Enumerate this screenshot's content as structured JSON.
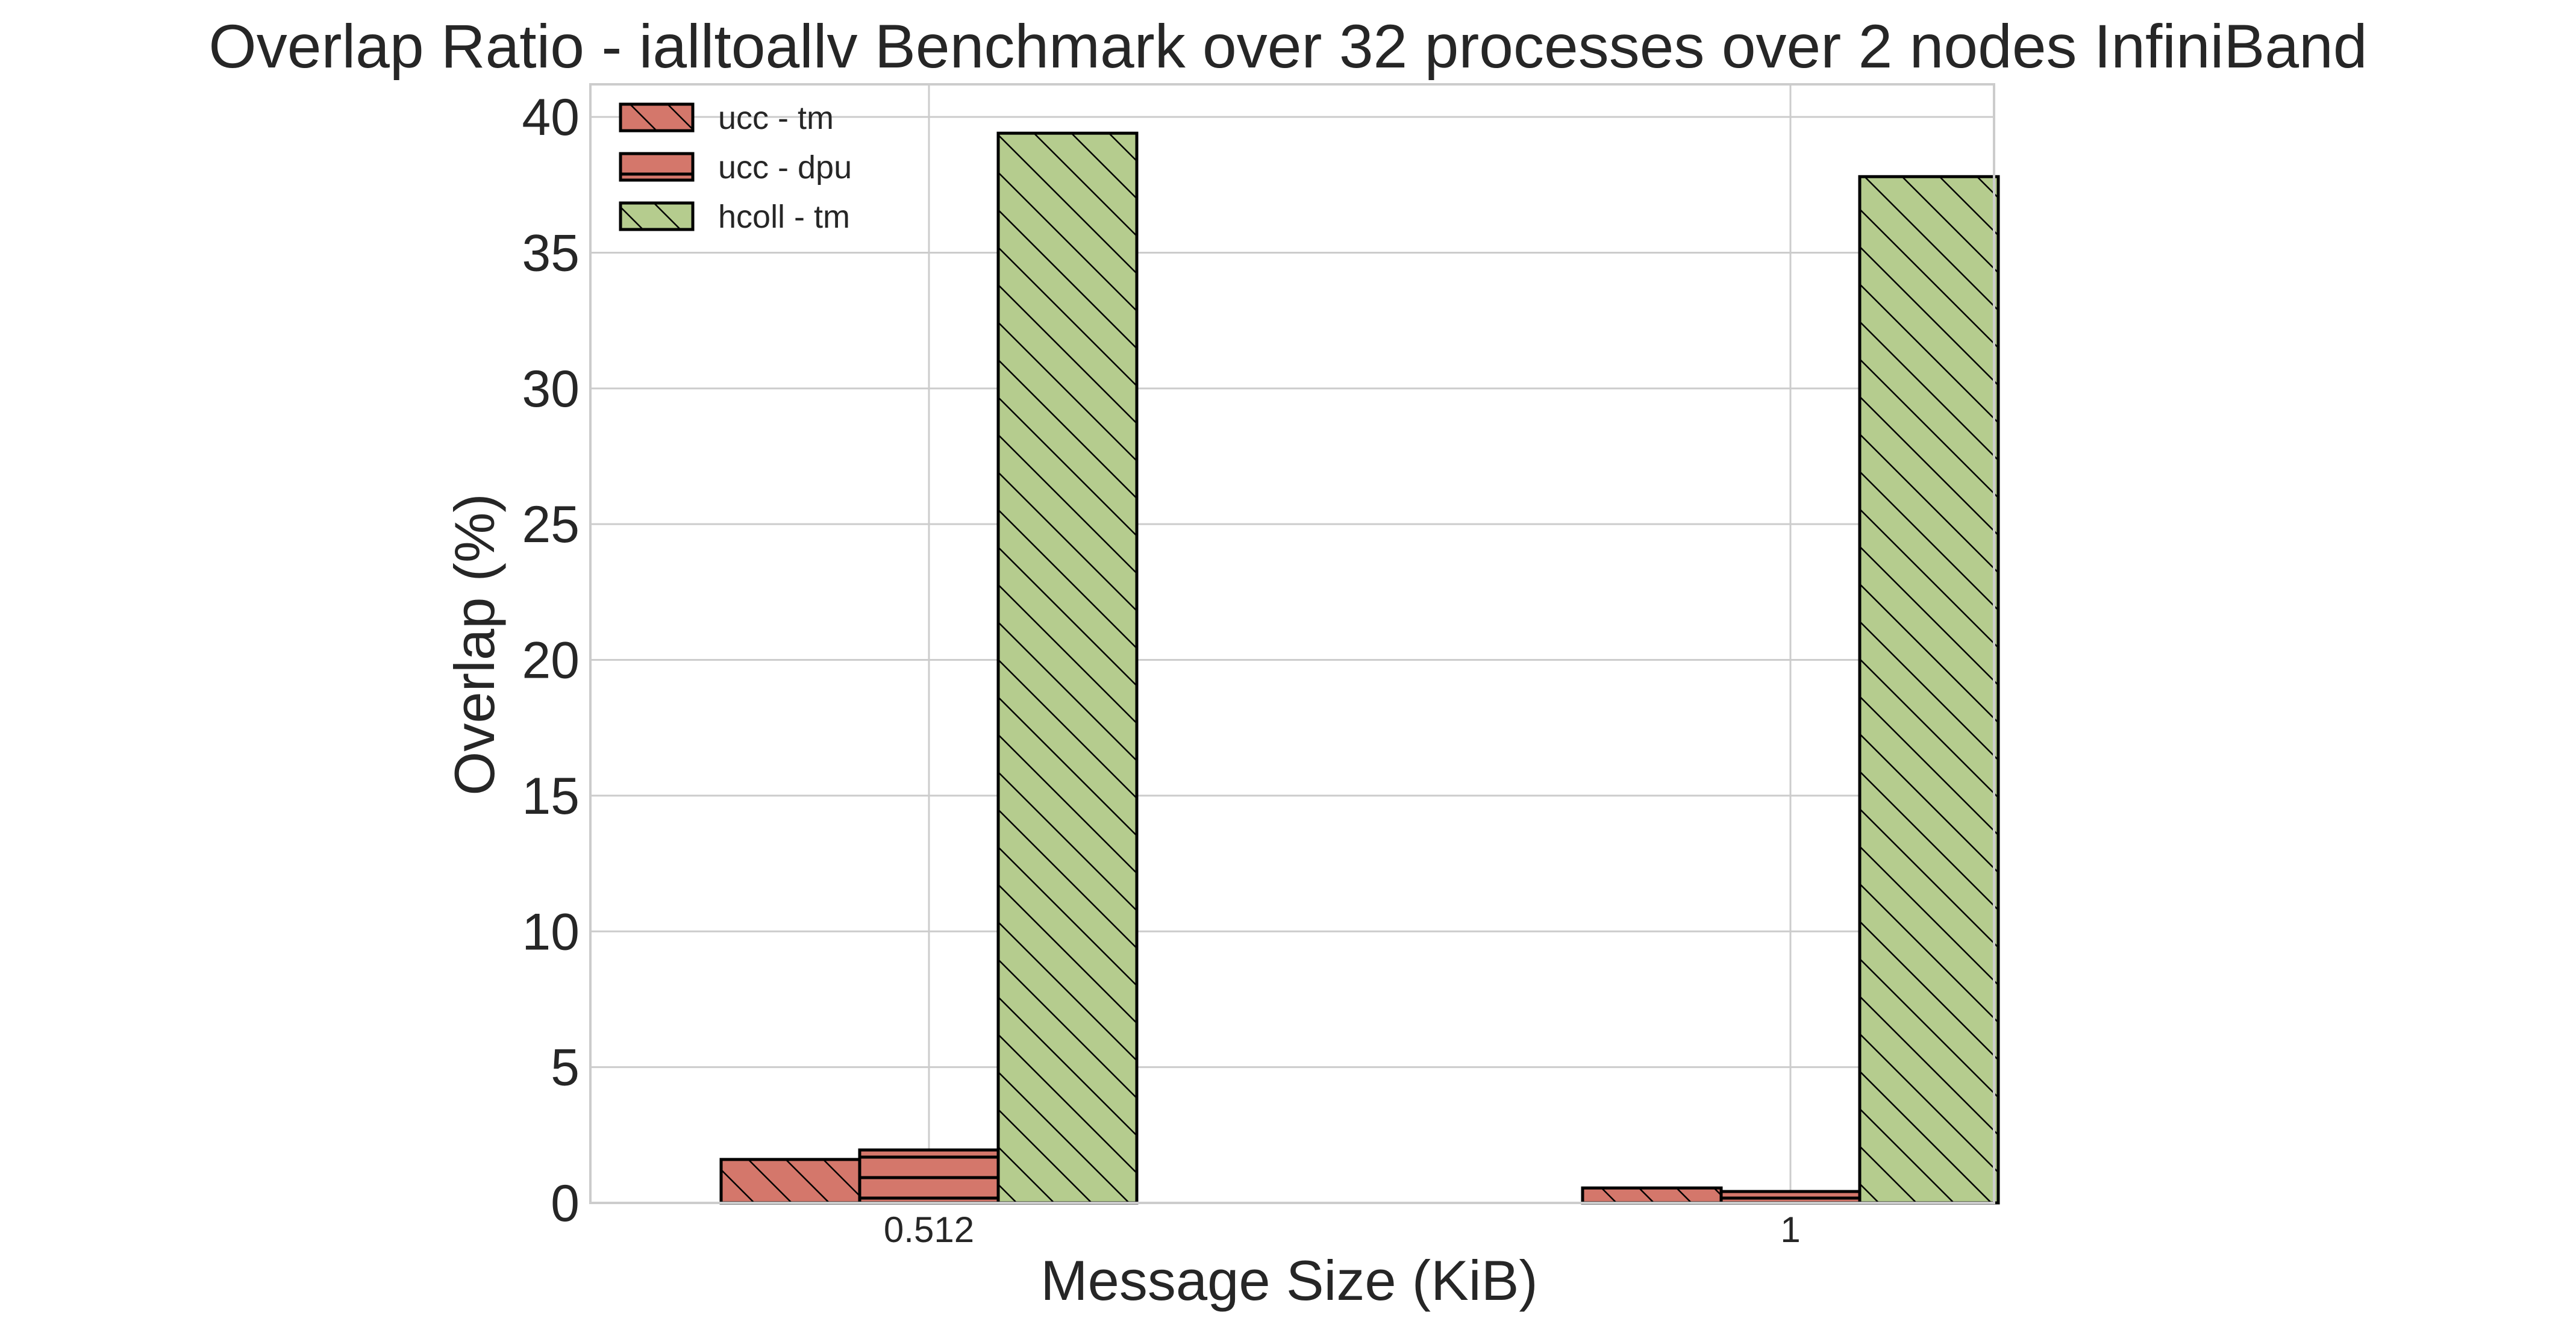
{
  "chart_data": {
    "type": "bar",
    "title": "Overlap Ratio - ialltoallv Benchmark over 32 processes over 2 nodes InfiniBand",
    "xlabel": "Message Size (KiB)",
    "ylabel": "Overlap (%)",
    "categories": [
      "0.512",
      "1"
    ],
    "ylim": [
      0,
      41.2
    ],
    "yticks": [
      0,
      5,
      10,
      15,
      20,
      25,
      30,
      35,
      40
    ],
    "grid": true,
    "legend_position": "top-left",
    "series": [
      {
        "name": "ucc - tm",
        "values": [
          1.6,
          0.55
        ],
        "color": "#d4776b",
        "hatch": "back-diagonal"
      },
      {
        "name": "ucc - dpu",
        "values": [
          1.95,
          0.42
        ],
        "color": "#d4776b",
        "hatch": "horizontal"
      },
      {
        "name": "hcoll - tm",
        "values": [
          39.4,
          37.8
        ],
        "color": "#b5cc8e",
        "hatch": "back-diagonal"
      }
    ]
  }
}
